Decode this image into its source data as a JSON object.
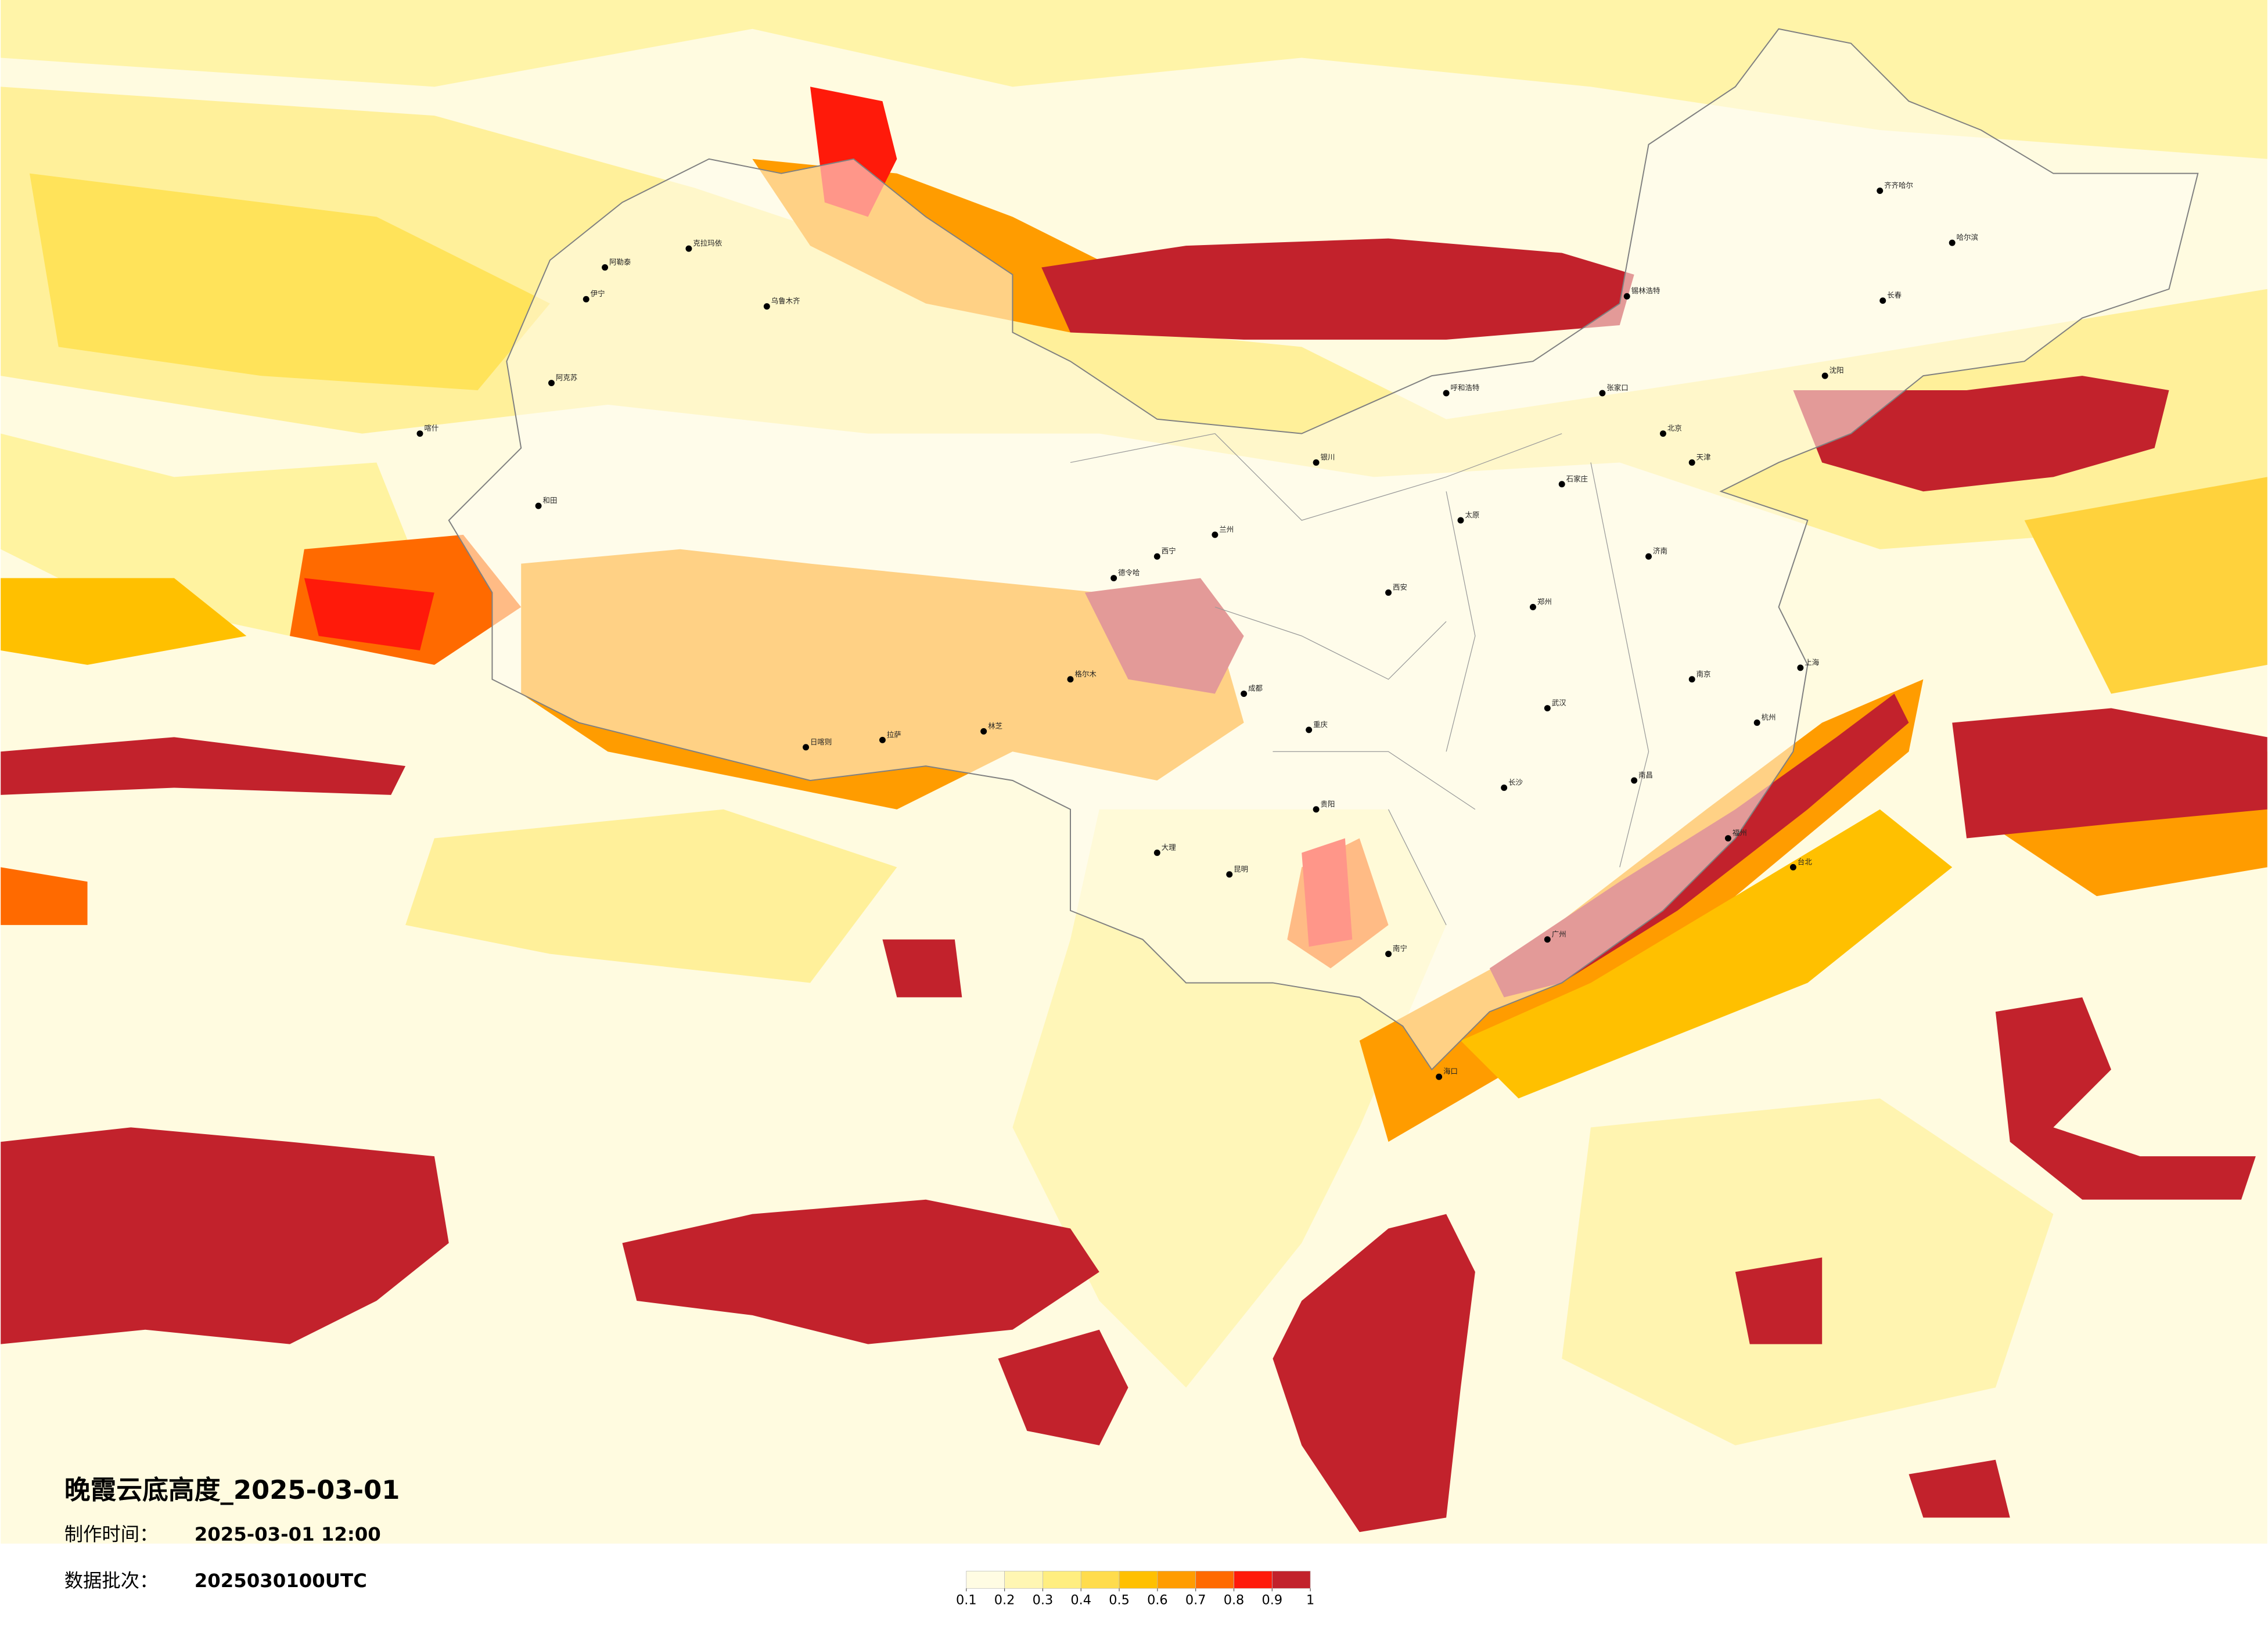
{
  "title": "晚霞云底高度_2025-03-01",
  "production_time": {
    "label": "制作时间：",
    "value": "2025-03-01 12:00"
  },
  "data_batch": {
    "label": "数据批次：",
    "value": "2025030100UTC"
  },
  "legend": {
    "colors": [
      "#fffce3",
      "#fff6b3",
      "#ffee80",
      "#ffdc4d",
      "#ffc000",
      "#ff9c00",
      "#ff6a00",
      "#ff1a0a",
      "#c2222c"
    ],
    "ticks": [
      0.1,
      0.2,
      0.3,
      0.4,
      0.5,
      0.6,
      0.7,
      0.8,
      0.9,
      1
    ]
  },
  "cities": [
    "克拉玛依",
    "伊宁",
    "乌鲁木齐",
    "阿克苏",
    "和田",
    "喀什",
    "阿勒泰",
    "格尔木",
    "德令哈",
    "拉萨",
    "日喀则",
    "林芝",
    "西宁",
    "兰州",
    "银川",
    "呼和浩特",
    "张家口",
    "锡林浩特",
    "齐齐哈尔",
    "哈尔滨",
    "长春",
    "沈阳",
    "北京",
    "天津",
    "石家庄",
    "太原",
    "西安",
    "郑州",
    "济南",
    "南京",
    "上海",
    "杭州",
    "武汉",
    "长沙",
    "南昌",
    "福州",
    "广州",
    "南宁",
    "贵阳",
    "昆明",
    "成都",
    "重庆",
    "海口",
    "台北",
    "大理"
  ]
}
